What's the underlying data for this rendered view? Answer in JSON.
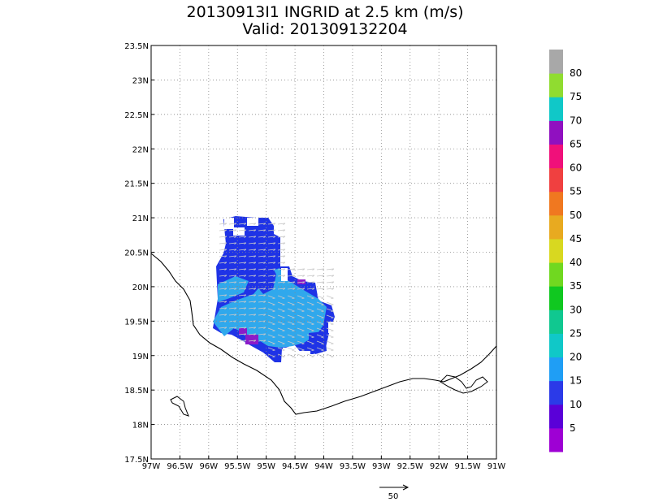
{
  "title": {
    "line1": "20130913I1 INGRID at 2.5 km (m/s)",
    "line2": "Valid: 201309132204"
  },
  "map": {
    "lon_range": [
      -97,
      -91
    ],
    "lat_range": [
      17.5,
      23.5
    ],
    "lon_ticks": [
      "97W",
      "96.5W",
      "96W",
      "95.5W",
      "95W",
      "94.5W",
      "94W",
      "93.5W",
      "93W",
      "92.5W",
      "92W",
      "91.5W",
      "91W"
    ],
    "lat_ticks": [
      "17.5N",
      "18N",
      "18.5N",
      "19N",
      "19.5N",
      "20N",
      "20.5N",
      "21N",
      "21.5N",
      "22N",
      "22.5N",
      "23N",
      "23.5N"
    ],
    "grid": true
  },
  "colorbar": {
    "labels": [
      "5",
      "10",
      "15",
      "20",
      "25",
      "30",
      "35",
      "40",
      "45",
      "50",
      "55",
      "60",
      "65",
      "70",
      "75",
      "80"
    ],
    "colors": [
      "#9e00d4",
      "#5a00d8",
      "#2b3ae8",
      "#1f9ef5",
      "#10c8c8",
      "#10c890",
      "#10c820",
      "#70d820",
      "#d8d820",
      "#e8aa20",
      "#f07820",
      "#f04040",
      "#f0107a",
      "#9010c0",
      "#10c8c8",
      "#90dc30",
      "#a8a8a8"
    ]
  },
  "scale_arrow": {
    "label": "50"
  },
  "colors": {
    "light_blue": "#30a8ec",
    "dark_blue": "#1f33e6",
    "purple": "#8b1bc8"
  }
}
